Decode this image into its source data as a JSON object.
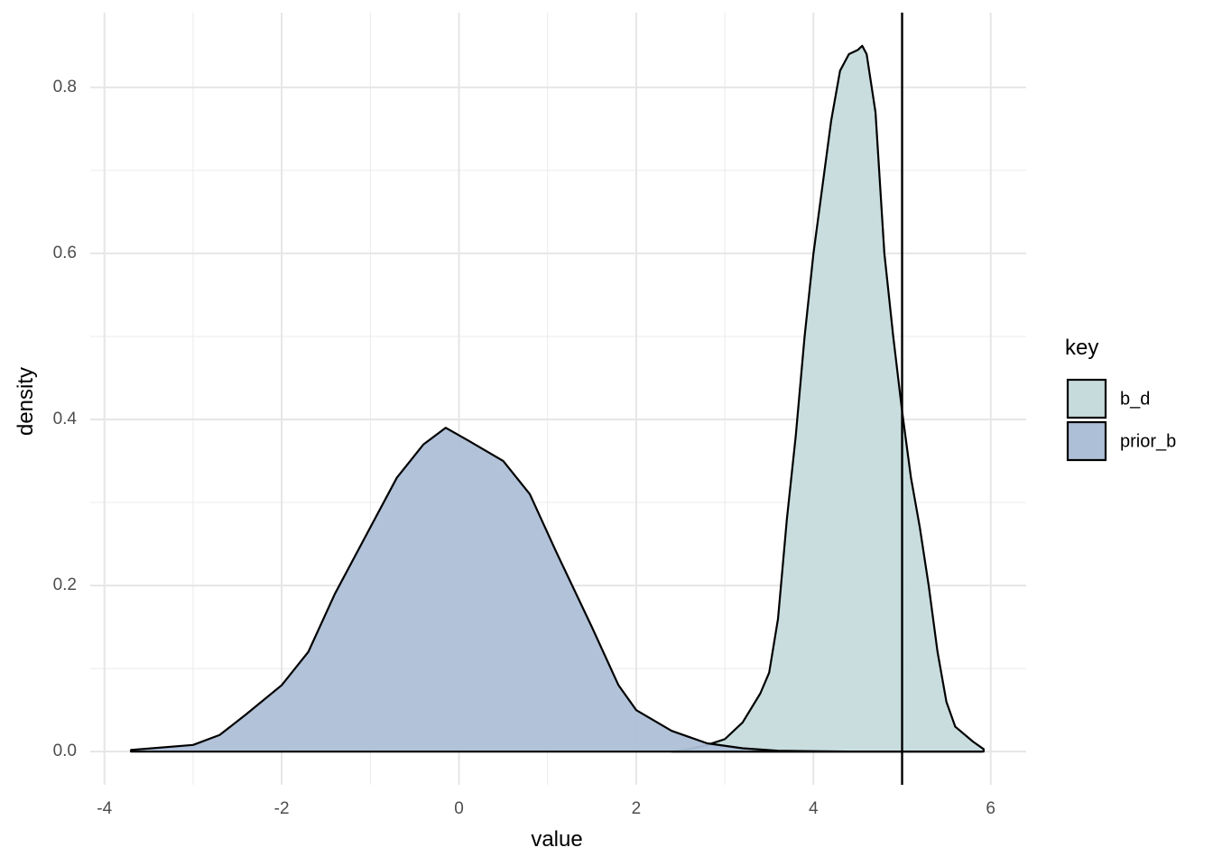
{
  "chart_data": {
    "type": "density",
    "x_label": "value",
    "y_label": "density",
    "legend_title": "key",
    "legend_position": "right",
    "grid": true,
    "xlim": [
      -4.16,
      6.4
    ],
    "ylim": [
      -0.04,
      0.89
    ],
    "xticks": [
      -4,
      -2,
      0,
      2,
      4,
      6
    ],
    "yticks": [
      {
        "value": 0,
        "label": "0.0"
      },
      0.2,
      0.4,
      0.6,
      0.8
    ],
    "xminor": [
      -3,
      -1,
      1,
      3,
      5
    ],
    "yminor": [
      0.1,
      0.3,
      0.5,
      0.7
    ],
    "vline": 5,
    "series": [
      {
        "name": "b_d",
        "color": "#c6dbdc",
        "x": [
          2.4,
          2.6,
          2.8,
          3.0,
          3.2,
          3.4,
          3.5,
          3.6,
          3.7,
          3.8,
          3.9,
          4.0,
          4.1,
          4.2,
          4.3,
          4.4,
          4.5,
          4.55,
          4.6,
          4.7,
          4.8,
          4.9,
          5.0,
          5.1,
          5.2,
          5.3,
          5.4,
          5.5,
          5.6,
          5.8,
          5.92
        ],
        "values": [
          0,
          0.003,
          0.008,
          0.015,
          0.035,
          0.07,
          0.095,
          0.16,
          0.28,
          0.38,
          0.5,
          0.6,
          0.68,
          0.76,
          0.82,
          0.84,
          0.845,
          0.85,
          0.84,
          0.77,
          0.6,
          0.5,
          0.41,
          0.33,
          0.27,
          0.2,
          0.12,
          0.06,
          0.03,
          0.012,
          0.003
        ]
      },
      {
        "name": "prior_b",
        "color": "#adbfd7",
        "x": [
          -3.7,
          -3.0,
          -2.7,
          -2.4,
          -2.0,
          -1.7,
          -1.4,
          -1.0,
          -0.7,
          -0.4,
          -0.15,
          0.1,
          0.5,
          0.8,
          1.1,
          1.5,
          1.8,
          2.0,
          2.4,
          2.8,
          3.2,
          3.6,
          4.0,
          4.5,
          5.9
        ],
        "values": [
          0.002,
          0.008,
          0.02,
          0.045,
          0.08,
          0.12,
          0.19,
          0.27,
          0.33,
          0.37,
          0.39,
          0.375,
          0.35,
          0.31,
          0.24,
          0.15,
          0.08,
          0.05,
          0.025,
          0.01,
          0.004,
          0.001,
          0.0005,
          0,
          0
        ]
      }
    ]
  }
}
